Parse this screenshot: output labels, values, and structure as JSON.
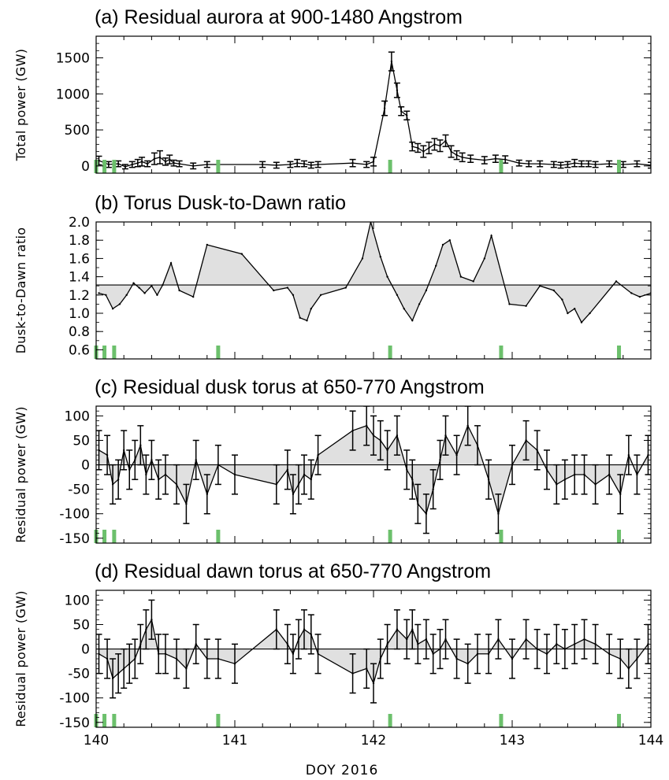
{
  "figure": {
    "xlabel": "DOY 2016"
  },
  "colors": {
    "fill": "#e0e0e0",
    "line": "#000000",
    "marker": "#6cc06c"
  },
  "chart_data": [
    {
      "type": "line",
      "title": "(a) Residual aurora at 900-1480 Angstrom",
      "ylabel": "Total power (GW)",
      "xlim": [
        140,
        144
      ],
      "ylim": [
        -100,
        1800
      ],
      "yticks": [
        0,
        500,
        1000,
        1500
      ],
      "xticks": [
        140,
        141,
        142,
        143,
        144
      ],
      "baseline": null,
      "markers_x": [
        140.0,
        140.06,
        140.13,
        140.88,
        142.12,
        142.92,
        143.77
      ],
      "x": [
        140.02,
        140.09,
        140.16,
        140.21,
        140.26,
        140.3,
        140.33,
        140.37,
        140.42,
        140.46,
        140.5,
        140.53,
        140.56,
        140.6,
        140.7,
        140.8,
        141.2,
        141.3,
        141.4,
        141.45,
        141.5,
        141.55,
        141.6,
        141.85,
        141.95,
        142.0,
        142.08,
        142.13,
        142.17,
        142.2,
        142.24,
        142.28,
        142.32,
        142.36,
        142.4,
        142.44,
        142.48,
        142.52,
        142.56,
        142.6,
        142.64,
        142.7,
        142.8,
        142.88,
        142.95,
        143.05,
        143.12,
        143.2,
        143.3,
        143.35,
        143.4,
        143.45,
        143.5,
        143.55,
        143.6,
        143.7,
        143.8,
        143.9,
        144.0
      ],
      "y": [
        75,
        20,
        30,
        -10,
        20,
        40,
        60,
        30,
        100,
        120,
        60,
        90,
        40,
        30,
        0,
        20,
        20,
        10,
        20,
        40,
        30,
        10,
        20,
        40,
        20,
        60,
        800,
        1450,
        1050,
        760,
        700,
        270,
        250,
        200,
        250,
        300,
        280,
        350,
        200,
        150,
        120,
        100,
        80,
        100,
        90,
        40,
        30,
        30,
        20,
        10,
        20,
        40,
        30,
        30,
        20,
        30,
        20,
        30,
        10
      ],
      "yerr": [
        60,
        40,
        40,
        30,
        40,
        50,
        60,
        40,
        80,
        90,
        50,
        60,
        40,
        40,
        40,
        40,
        40,
        40,
        40,
        50,
        40,
        40,
        40,
        50,
        40,
        60,
        100,
        130,
        100,
        60,
        60,
        60,
        60,
        80,
        80,
        80,
        80,
        80,
        80,
        60,
        60,
        50,
        50,
        50,
        50,
        40,
        40,
        40,
        40,
        40,
        40,
        50,
        40,
        40,
        40,
        40,
        40,
        40,
        40
      ]
    },
    {
      "type": "line",
      "title": "(b) Torus Dusk-to-Dawn ratio",
      "ylabel": "Dusk-to-Dawn ratio",
      "xlim": [
        140,
        144
      ],
      "ylim": [
        0.5,
        2.0
      ],
      "yticks": [
        0.6,
        0.8,
        1.0,
        1.2,
        1.4,
        1.6,
        1.8,
        2.0
      ],
      "ytick_labels": [
        "0.6",
        "0.8",
        "1.0",
        "1.2",
        "1.4",
        "1.6",
        "1.8",
        "2.0"
      ],
      "xticks": [
        140,
        141,
        142,
        143,
        144
      ],
      "baseline": 1.31,
      "markers_x": [
        140.0,
        140.06,
        140.13,
        140.88,
        142.12,
        142.92,
        143.77
      ],
      "x": [
        140.02,
        140.07,
        140.12,
        140.17,
        140.22,
        140.27,
        140.31,
        140.35,
        140.4,
        140.44,
        140.48,
        140.54,
        140.6,
        140.7,
        140.8,
        141.05,
        141.28,
        141.38,
        141.42,
        141.47,
        141.52,
        141.55,
        141.62,
        141.8,
        141.92,
        141.98,
        142.05,
        142.1,
        142.17,
        142.22,
        142.28,
        142.33,
        142.38,
        142.45,
        142.5,
        142.55,
        142.63,
        142.72,
        142.8,
        142.85,
        142.98,
        143.1,
        143.2,
        143.3,
        143.36,
        143.4,
        143.45,
        143.5,
        143.56,
        143.75,
        143.86,
        143.92,
        144.0
      ],
      "y": [
        1.22,
        1.2,
        1.05,
        1.1,
        1.2,
        1.33,
        1.28,
        1.22,
        1.3,
        1.2,
        1.31,
        1.55,
        1.25,
        1.18,
        1.75,
        1.65,
        1.25,
        1.28,
        1.2,
        0.95,
        0.92,
        1.05,
        1.2,
        1.28,
        1.6,
        2.0,
        1.62,
        1.4,
        1.2,
        1.05,
        0.92,
        1.1,
        1.25,
        1.52,
        1.75,
        1.8,
        1.4,
        1.35,
        1.6,
        1.85,
        1.1,
        1.08,
        1.3,
        1.25,
        1.15,
        1.0,
        1.05,
        0.9,
        1.0,
        1.35,
        1.22,
        1.18,
        1.22
      ]
    },
    {
      "type": "line",
      "title": "(c) Residual dusk torus at 650-770 Angstrom",
      "ylabel": "Residual power (GW)",
      "xlim": [
        140,
        144
      ],
      "ylim": [
        -160,
        120
      ],
      "yticks": [
        -150,
        -100,
        -50,
        0,
        50,
        100
      ],
      "xticks": [
        140,
        141,
        142,
        143,
        144
      ],
      "baseline": 0,
      "markers_x": [
        140.0,
        140.06,
        140.13,
        140.88,
        142.12,
        142.92,
        143.77
      ],
      "x": [
        140.02,
        140.08,
        140.12,
        140.16,
        140.2,
        140.24,
        140.28,
        140.32,
        140.36,
        140.4,
        140.45,
        140.5,
        140.58,
        140.65,
        140.72,
        140.8,
        140.88,
        141.0,
        141.3,
        141.38,
        141.42,
        141.46,
        141.5,
        141.55,
        141.6,
        141.85,
        141.95,
        142.0,
        142.05,
        142.1,
        142.17,
        142.24,
        142.28,
        142.32,
        142.38,
        142.43,
        142.48,
        142.52,
        142.6,
        142.68,
        142.75,
        142.83,
        142.9,
        143.0,
        143.1,
        143.18,
        143.25,
        143.32,
        143.38,
        143.45,
        143.52,
        143.6,
        143.7,
        143.78,
        143.84,
        143.9,
        143.98
      ],
      "y": [
        30,
        20,
        -40,
        -30,
        30,
        -10,
        10,
        40,
        -20,
        10,
        -30,
        -20,
        -40,
        -80,
        10,
        -60,
        0,
        -20,
        -40,
        -10,
        -60,
        -40,
        -20,
        -30,
        20,
        70,
        80,
        60,
        50,
        30,
        60,
        -10,
        -30,
        -80,
        -100,
        -50,
        10,
        60,
        20,
        80,
        40,
        -30,
        -100,
        0,
        50,
        30,
        -10,
        -40,
        -30,
        -20,
        -20,
        -40,
        -20,
        -60,
        20,
        -20,
        20
      ],
      "yerr": [
        40,
        40,
        40,
        40,
        40,
        40,
        40,
        40,
        40,
        40,
        40,
        40,
        40,
        40,
        40,
        40,
        40,
        40,
        40,
        40,
        40,
        40,
        40,
        40,
        40,
        40,
        40,
        40,
        40,
        40,
        40,
        40,
        40,
        40,
        40,
        40,
        40,
        40,
        40,
        40,
        40,
        40,
        40,
        40,
        40,
        40,
        40,
        40,
        40,
        40,
        40,
        40,
        40,
        40,
        40,
        40,
        40
      ]
    },
    {
      "type": "line",
      "title": "(d) Residual dawn torus at 650-770 Angstrom",
      "ylabel": "Residual power (GW)",
      "xlim": [
        140,
        144
      ],
      "ylim": [
        -160,
        120
      ],
      "yticks": [
        -150,
        -100,
        -50,
        0,
        50,
        100
      ],
      "xticks": [
        140,
        141,
        142,
        143,
        144
      ],
      "baseline": 0,
      "markers_x": [
        140.0,
        140.06,
        140.13,
        140.88,
        142.12,
        142.92,
        143.77
      ],
      "x": [
        140.02,
        140.08,
        140.12,
        140.16,
        140.2,
        140.24,
        140.28,
        140.32,
        140.36,
        140.4,
        140.45,
        140.5,
        140.58,
        140.65,
        140.72,
        140.8,
        140.88,
        141.0,
        141.3,
        141.38,
        141.42,
        141.46,
        141.5,
        141.55,
        141.6,
        141.85,
        141.95,
        142.0,
        142.05,
        142.1,
        142.17,
        142.24,
        142.28,
        142.32,
        142.38,
        142.43,
        142.48,
        142.52,
        142.6,
        142.68,
        142.75,
        142.83,
        142.9,
        143.0,
        143.1,
        143.18,
        143.25,
        143.32,
        143.38,
        143.45,
        143.52,
        143.6,
        143.7,
        143.78,
        143.84,
        143.9,
        143.98
      ],
      "y": [
        -10,
        -20,
        -60,
        -50,
        -40,
        -30,
        -20,
        10,
        40,
        60,
        -10,
        -10,
        -20,
        -40,
        10,
        -20,
        -20,
        -30,
        40,
        10,
        -10,
        20,
        40,
        30,
        -10,
        -50,
        -40,
        -70,
        -20,
        10,
        40,
        20,
        40,
        10,
        20,
        -10,
        0,
        20,
        -20,
        -30,
        -10,
        -10,
        20,
        -20,
        20,
        0,
        -10,
        10,
        0,
        10,
        20,
        10,
        -10,
        -20,
        -40,
        -20,
        10
      ],
      "yerr": [
        40,
        40,
        40,
        40,
        40,
        40,
        40,
        40,
        40,
        40,
        40,
        40,
        40,
        40,
        40,
        40,
        40,
        40,
        40,
        40,
        40,
        40,
        40,
        40,
        40,
        40,
        40,
        40,
        40,
        40,
        40,
        40,
        40,
        40,
        40,
        40,
        40,
        40,
        40,
        40,
        40,
        40,
        40,
        40,
        40,
        40,
        40,
        40,
        40,
        40,
        40,
        40,
        40,
        40,
        40,
        40,
        40
      ]
    }
  ]
}
